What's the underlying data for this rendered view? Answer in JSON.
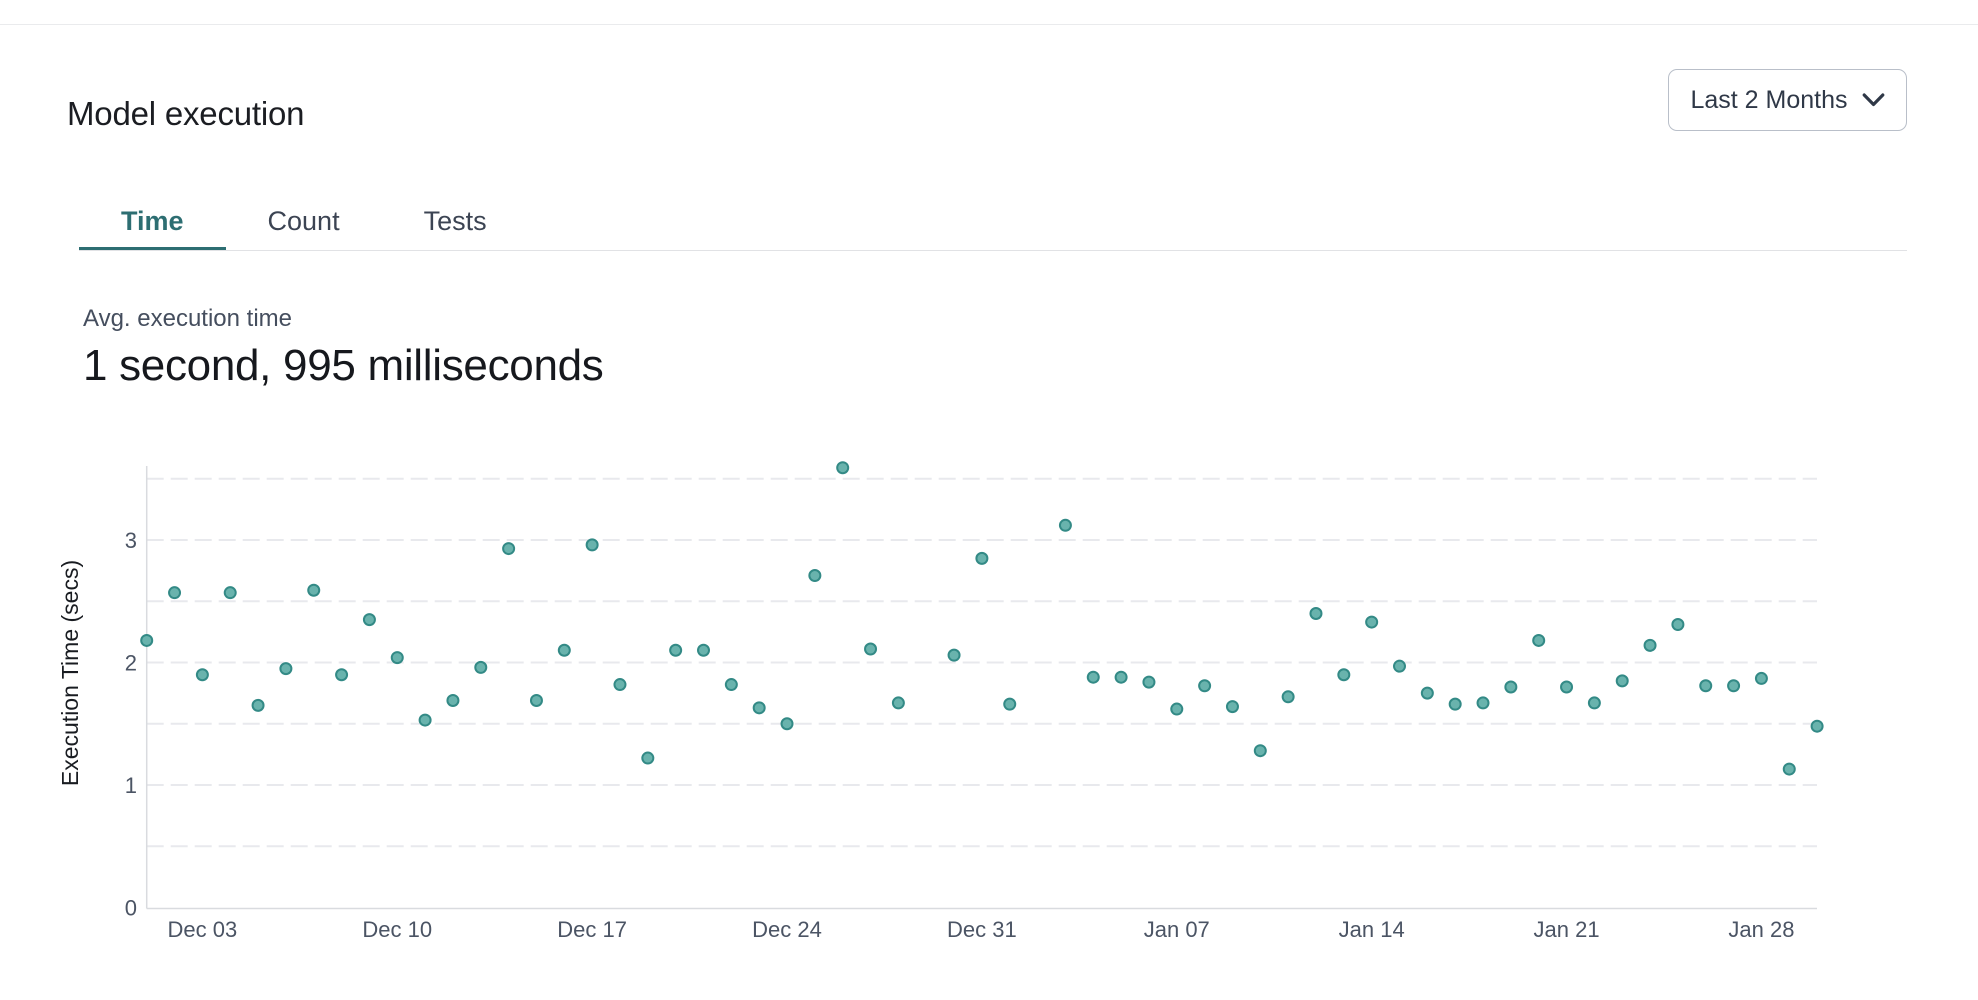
{
  "header": {
    "title": "Model execution",
    "time_range": {
      "label": "Last 2 Months",
      "icon": "chevron-down-icon"
    }
  },
  "tabs": {
    "items": [
      {
        "label": "Time",
        "active": true
      },
      {
        "label": "Count",
        "active": false
      },
      {
        "label": "Tests",
        "active": false
      }
    ]
  },
  "stat": {
    "label": "Avg. execution time",
    "value": "1 second, 995 milliseconds"
  },
  "colors": {
    "accent_teal": "#2d6e72",
    "point_fill": "#69b3ad",
    "point_stroke": "#338a86",
    "grid_line": "#e8e9ed",
    "axis_line": "#d9dbdf",
    "tick_text": "#4b5464",
    "axis_title_text": "#191c21"
  },
  "chart_data": {
    "type": "scatter",
    "title": "",
    "xlabel": "",
    "ylabel": "Execution Time (secs)",
    "ylim": [
      0,
      3.6
    ],
    "yticks": [
      0,
      1,
      2,
      3
    ],
    "grid_step": 0.5,
    "grid": true,
    "legend": "none",
    "x_axis_unit": "day",
    "x_ticks": [
      {
        "label": "Dec 03",
        "day": 2
      },
      {
        "label": "Dec 10",
        "day": 9
      },
      {
        "label": "Dec 17",
        "day": 16
      },
      {
        "label": "Dec 24",
        "day": 23
      },
      {
        "label": "Dec 31",
        "day": 30
      },
      {
        "label": "Jan 07",
        "day": 37
      },
      {
        "label": "Jan 14",
        "day": 44
      },
      {
        "label": "Jan 21",
        "day": 51
      },
      {
        "label": "Jan 28",
        "day": 58
      }
    ],
    "points": [
      {
        "date": "Dec 01",
        "day": 0,
        "value": 2.18
      },
      {
        "date": "Dec 02",
        "day": 1,
        "value": 2.57
      },
      {
        "date": "Dec 03",
        "day": 2,
        "value": 1.9
      },
      {
        "date": "Dec 04",
        "day": 3,
        "value": 2.57
      },
      {
        "date": "Dec 05",
        "day": 4,
        "value": 1.65
      },
      {
        "date": "Dec 06",
        "day": 5,
        "value": 1.95
      },
      {
        "date": "Dec 07",
        "day": 6,
        "value": 2.59
      },
      {
        "date": "Dec 08",
        "day": 7,
        "value": 1.9
      },
      {
        "date": "Dec 09",
        "day": 8,
        "value": 2.35
      },
      {
        "date": "Dec 10",
        "day": 9,
        "value": 2.04
      },
      {
        "date": "Dec 11",
        "day": 10,
        "value": 1.53
      },
      {
        "date": "Dec 12",
        "day": 11,
        "value": 1.69
      },
      {
        "date": "Dec 13",
        "day": 12,
        "value": 1.96
      },
      {
        "date": "Dec 14",
        "day": 13,
        "value": 2.93
      },
      {
        "date": "Dec 15",
        "day": 14,
        "value": 1.69
      },
      {
        "date": "Dec 16",
        "day": 15,
        "value": 2.1
      },
      {
        "date": "Dec 17",
        "day": 16,
        "value": 2.96
      },
      {
        "date": "Dec 18",
        "day": 17,
        "value": 1.82
      },
      {
        "date": "Dec 19",
        "day": 18,
        "value": 1.22
      },
      {
        "date": "Dec 20",
        "day": 19,
        "value": 2.1
      },
      {
        "date": "Dec 21",
        "day": 20,
        "value": 2.1
      },
      {
        "date": "Dec 22",
        "day": 21,
        "value": 1.82
      },
      {
        "date": "Dec 23",
        "day": 22,
        "value": 1.63
      },
      {
        "date": "Dec 24",
        "day": 23,
        "value": 1.5
      },
      {
        "date": "Dec 25",
        "day": 24,
        "value": 2.71
      },
      {
        "date": "Dec 26",
        "day": 25,
        "value": 3.59
      },
      {
        "date": "Dec 27",
        "day": 26,
        "value": 2.11
      },
      {
        "date": "Dec 28",
        "day": 27,
        "value": 1.67
      },
      {
        "date": "Dec 30",
        "day": 29,
        "value": 2.06
      },
      {
        "date": "Dec 31",
        "day": 30,
        "value": 2.85
      },
      {
        "date": "Jan 01",
        "day": 31,
        "value": 1.66
      },
      {
        "date": "Jan 03",
        "day": 33,
        "value": 3.12
      },
      {
        "date": "Jan 04",
        "day": 34,
        "value": 1.88
      },
      {
        "date": "Jan 05",
        "day": 35,
        "value": 1.88
      },
      {
        "date": "Jan 06",
        "day": 36,
        "value": 1.84
      },
      {
        "date": "Jan 07",
        "day": 37,
        "value": 1.62
      },
      {
        "date": "Jan 08",
        "day": 38,
        "value": 1.81
      },
      {
        "date": "Jan 09",
        "day": 39,
        "value": 1.64
      },
      {
        "date": "Jan 10",
        "day": 40,
        "value": 1.28
      },
      {
        "date": "Jan 11",
        "day": 41,
        "value": 1.72
      },
      {
        "date": "Jan 12",
        "day": 42,
        "value": 2.4
      },
      {
        "date": "Jan 13",
        "day": 43,
        "value": 1.9
      },
      {
        "date": "Jan 14",
        "day": 44,
        "value": 2.33
      },
      {
        "date": "Jan 15",
        "day": 45,
        "value": 1.97
      },
      {
        "date": "Jan 16",
        "day": 46,
        "value": 1.75
      },
      {
        "date": "Jan 17",
        "day": 47,
        "value": 1.66
      },
      {
        "date": "Jan 18",
        "day": 48,
        "value": 1.67
      },
      {
        "date": "Jan 19",
        "day": 49,
        "value": 1.8
      },
      {
        "date": "Jan 20",
        "day": 50,
        "value": 2.18
      },
      {
        "date": "Jan 21",
        "day": 51,
        "value": 1.8
      },
      {
        "date": "Jan 22",
        "day": 52,
        "value": 1.67
      },
      {
        "date": "Jan 23",
        "day": 53,
        "value": 1.85
      },
      {
        "date": "Jan 24",
        "day": 54,
        "value": 2.14
      },
      {
        "date": "Jan 25",
        "day": 55,
        "value": 2.31
      },
      {
        "date": "Jan 26",
        "day": 56,
        "value": 1.81
      },
      {
        "date": "Jan 27",
        "day": 57,
        "value": 1.81
      },
      {
        "date": "Jan 28",
        "day": 58,
        "value": 1.87
      },
      {
        "date": "Jan 29",
        "day": 59,
        "value": 1.13
      },
      {
        "date": "Jan 30",
        "day": 60,
        "value": 1.48
      }
    ]
  }
}
